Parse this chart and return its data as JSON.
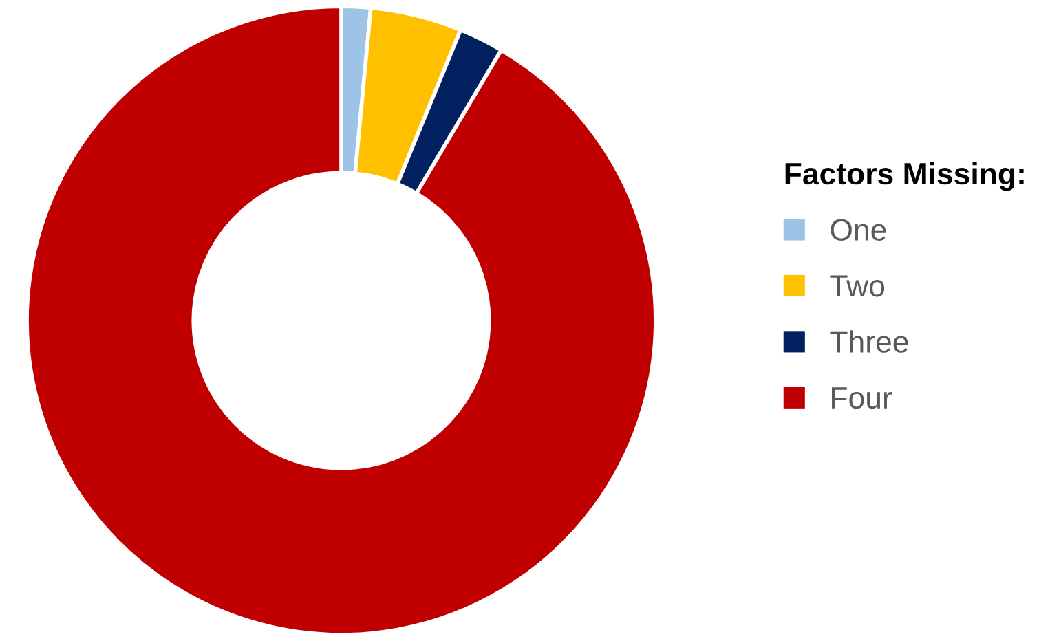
{
  "chart_data": {
    "type": "donut",
    "legend_title": "Factors Missing:",
    "categories": [
      "One",
      "Two",
      "Three",
      "Four"
    ],
    "values": [
      1.5,
      4.7,
      2.3,
      91.5
    ],
    "colors": [
      "#9dc3e6",
      "#ffc000",
      "#002060",
      "#c00000"
    ],
    "legend": "right"
  }
}
